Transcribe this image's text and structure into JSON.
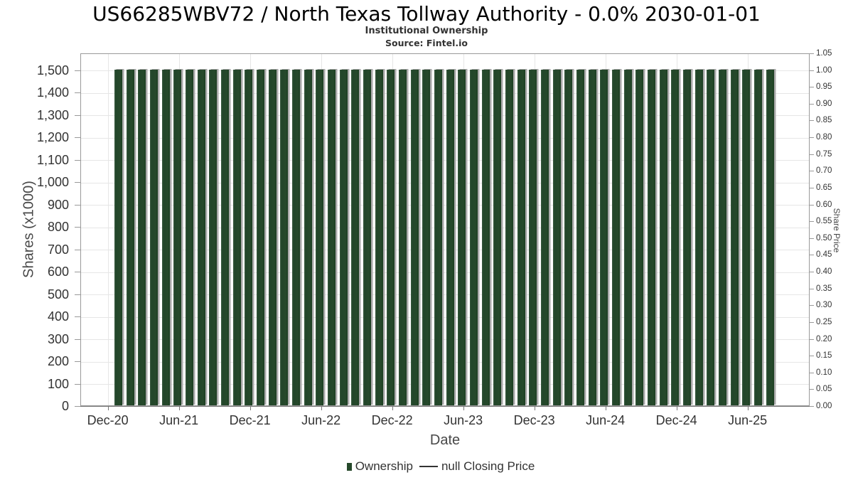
{
  "chart_data": {
    "type": "bar",
    "title": "US66285WBV72 / North Texas Tollway Authority - 0.0% 2030-01-01",
    "subtitle": "Institutional Ownership",
    "source": "Source: Fintel.io",
    "xlabel": "Date",
    "ylabel_left": "Shares (x1000)",
    "ylabel_right": "Share Price",
    "ylim_left": [
      0,
      1575
    ],
    "ylim_right": [
      0,
      1.05
    ],
    "grid": true,
    "legend_position": "bottom",
    "x": [
      "Jan-21",
      "Feb-21",
      "Mar-21",
      "Apr-21",
      "May-21",
      "Jun-21",
      "Jul-21",
      "Aug-21",
      "Sep-21",
      "Oct-21",
      "Nov-21",
      "Dec-21",
      "Jan-22",
      "Feb-22",
      "Mar-22",
      "Apr-22",
      "May-22",
      "Jun-22",
      "Jul-22",
      "Aug-22",
      "Sep-22",
      "Oct-22",
      "Nov-22",
      "Dec-22",
      "Jan-23",
      "Feb-23",
      "Mar-23",
      "Apr-23",
      "May-23",
      "Jun-23",
      "Jul-23",
      "Aug-23",
      "Sep-23",
      "Oct-23",
      "Nov-23",
      "Dec-23",
      "Jan-24",
      "Feb-24",
      "Mar-24",
      "Apr-24",
      "May-24",
      "Jun-24",
      "Jul-24",
      "Aug-24",
      "Sep-24",
      "Oct-24",
      "Nov-24",
      "Dec-24",
      "Jan-25",
      "Feb-25",
      "Mar-25",
      "Apr-25",
      "May-25",
      "Jun-25",
      "Jul-25",
      "Aug-25"
    ],
    "series": [
      {
        "name": "Ownership",
        "type": "column",
        "color": "#26492b",
        "values": [
          1500,
          1500,
          1500,
          1500,
          1500,
          1500,
          1500,
          1500,
          1500,
          1500,
          1500,
          1500,
          1500,
          1500,
          1500,
          1500,
          1500,
          1500,
          1500,
          1500,
          1500,
          1500,
          1500,
          1500,
          1500,
          1500,
          1500,
          1500,
          1500,
          1500,
          1500,
          1500,
          1500,
          1500,
          1500,
          1500,
          1500,
          1500,
          1500,
          1500,
          1500,
          1500,
          1500,
          1500,
          1500,
          1500,
          1500,
          1500,
          1500,
          1500,
          1500,
          1500,
          1500,
          1500,
          1500,
          1500
        ]
      },
      {
        "name": "null Closing Price",
        "type": "line",
        "color": "#333333",
        "values": []
      }
    ],
    "xticks": [
      {
        "label": "Dec-20",
        "month_index": -1
      },
      {
        "label": "Jun-21",
        "month_index": 5
      },
      {
        "label": "Dec-21",
        "month_index": 11
      },
      {
        "label": "Jun-22",
        "month_index": 17
      },
      {
        "label": "Dec-22",
        "month_index": 23
      },
      {
        "label": "Jun-23",
        "month_index": 29
      },
      {
        "label": "Dec-23",
        "month_index": 35
      },
      {
        "label": "Jun-24",
        "month_index": 41
      },
      {
        "label": "Dec-24",
        "month_index": 47
      },
      {
        "label": "Jun-25",
        "month_index": 53
      }
    ],
    "yticks_left": [
      {
        "label": "0",
        "value": 0
      },
      {
        "label": "100",
        "value": 100
      },
      {
        "label": "200",
        "value": 200
      },
      {
        "label": "300",
        "value": 300
      },
      {
        "label": "400",
        "value": 400
      },
      {
        "label": "500",
        "value": 500
      },
      {
        "label": "600",
        "value": 600
      },
      {
        "label": "700",
        "value": 700
      },
      {
        "label": "800",
        "value": 800
      },
      {
        "label": "900",
        "value": 900
      },
      {
        "label": "1,000",
        "value": 1000
      },
      {
        "label": "1,100",
        "value": 1100
      },
      {
        "label": "1,200",
        "value": 1200
      },
      {
        "label": "1,300",
        "value": 1300
      },
      {
        "label": "1,400",
        "value": 1400
      },
      {
        "label": "1,500",
        "value": 1500
      }
    ],
    "yticks_right": [
      {
        "label": "0.00",
        "value": 0.0
      },
      {
        "label": "0.05",
        "value": 0.05
      },
      {
        "label": "0.10",
        "value": 0.1
      },
      {
        "label": "0.15",
        "value": 0.15
      },
      {
        "label": "0.20",
        "value": 0.2
      },
      {
        "label": "0.25",
        "value": 0.25
      },
      {
        "label": "0.30",
        "value": 0.3
      },
      {
        "label": "0.35",
        "value": 0.35
      },
      {
        "label": "0.40",
        "value": 0.4
      },
      {
        "label": "0.45",
        "value": 0.45
      },
      {
        "label": "0.50",
        "value": 0.5
      },
      {
        "label": "0.55",
        "value": 0.55
      },
      {
        "label": "0.60",
        "value": 0.6
      },
      {
        "label": "0.65",
        "value": 0.65
      },
      {
        "label": "0.70",
        "value": 0.7
      },
      {
        "label": "0.75",
        "value": 0.75
      },
      {
        "label": "0.80",
        "value": 0.8
      },
      {
        "label": "0.85",
        "value": 0.85
      },
      {
        "label": "0.90",
        "value": 0.9
      },
      {
        "label": "0.95",
        "value": 0.95
      },
      {
        "label": "1.00",
        "value": 1.0
      },
      {
        "label": "1.05",
        "value": 1.05
      }
    ]
  },
  "legend": {
    "items": [
      {
        "label": "Ownership",
        "marker": "square",
        "color": "#26492b"
      },
      {
        "label": "null Closing Price",
        "marker": "line",
        "color": "#333333"
      }
    ]
  },
  "colors": {
    "bar": "#26492b",
    "bar_shadow": "#a9a9a9",
    "gridline": "#e6e6e6",
    "axis_line": "#999999",
    "tick_text": "#333333",
    "axis_title_text": "#484848",
    "title_text": "#000000"
  }
}
